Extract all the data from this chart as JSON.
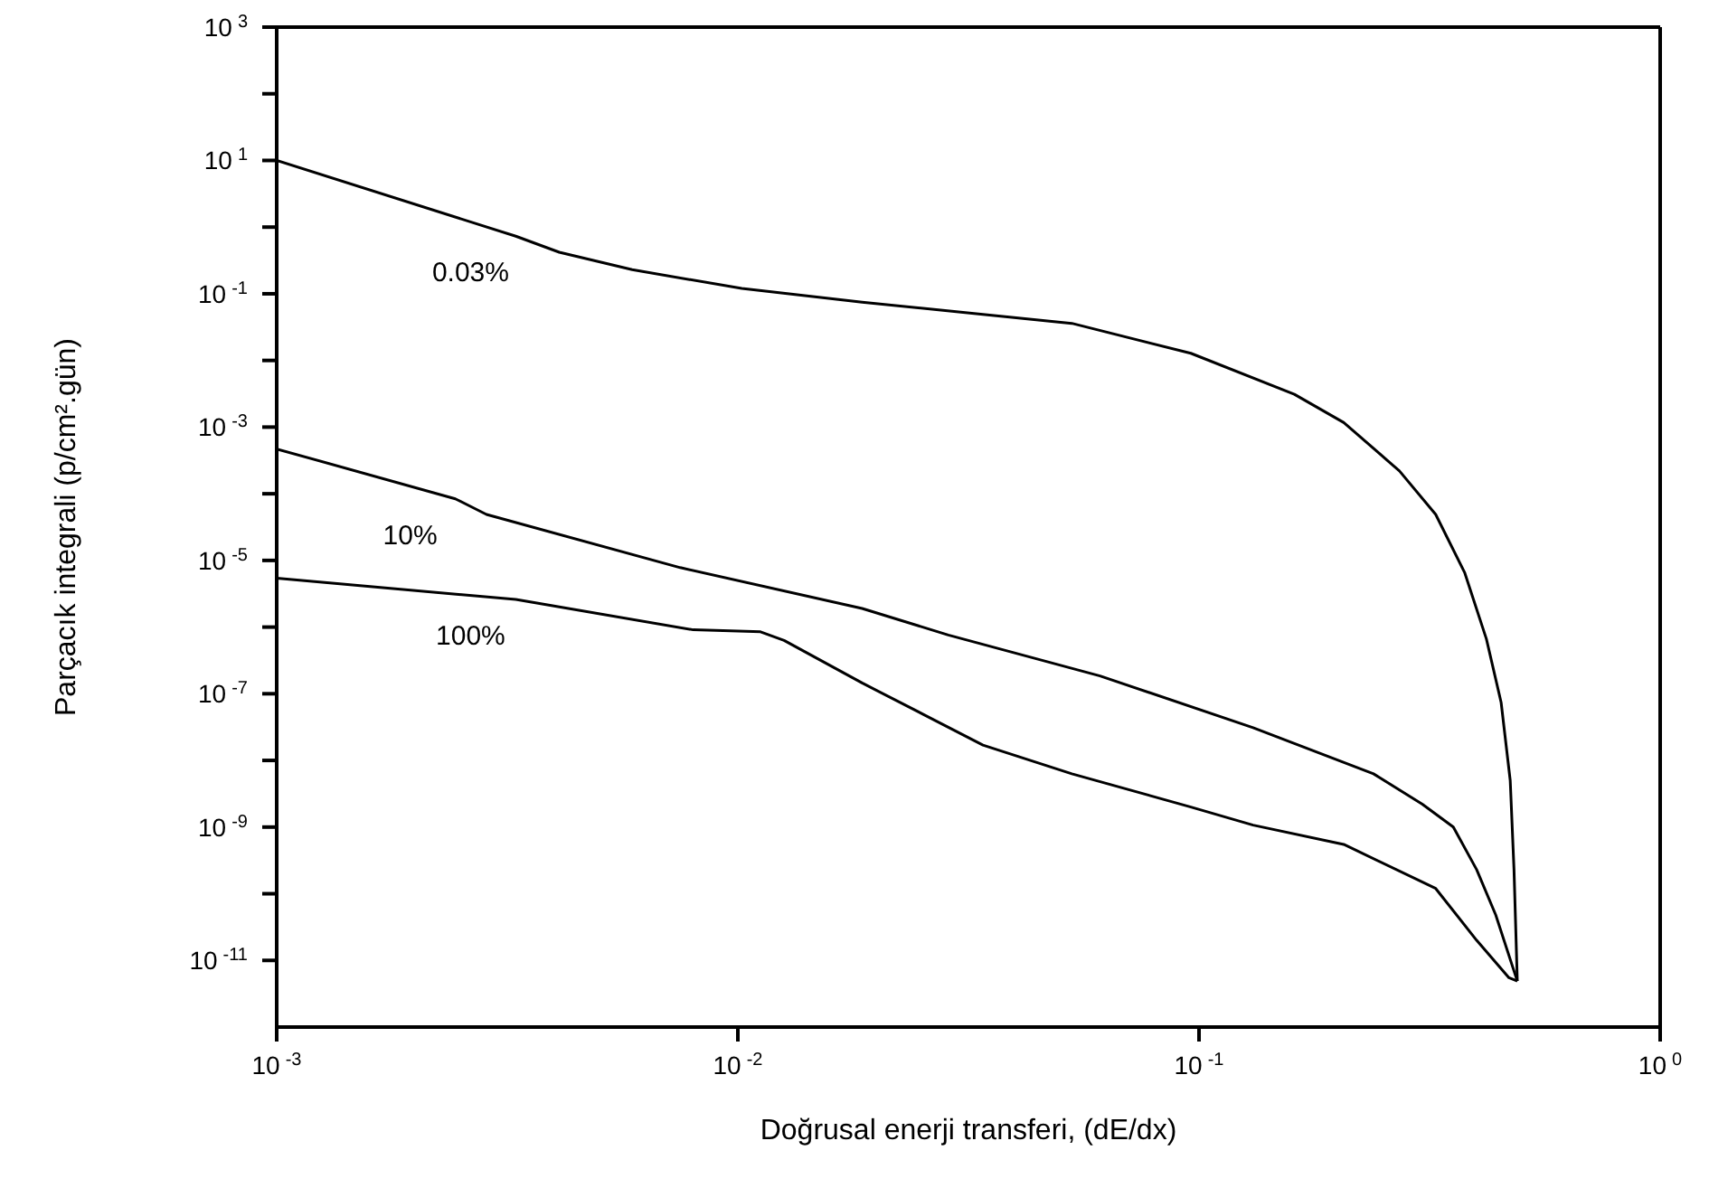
{
  "chart_data": {
    "type": "line",
    "xlabel": "Doğrusal enerji transferi, (dE/dx)",
    "ylabel": "Parçacık integrali  (p/cm².gün)",
    "log": "xy",
    "marker": "none",
    "line_style": "solid",
    "xlim": [
      0.001,
      1
    ],
    "xticks": [
      {
        "value": 0.001,
        "label": "10$^{-3}$"
      },
      {
        "value": 0.01,
        "label": "10$^{-2}$"
      },
      {
        "value": 0.1,
        "label": "10$^{-1}$"
      },
      {
        "value": 1,
        "label": "10$^{0}$"
      }
    ],
    "ylim": [
      1e-12,
      1000
    ],
    "yticks": [
      {
        "value": 1000,
        "label": "10$^{3}$"
      },
      {
        "value": 100,
        "label": null
      },
      {
        "value": 10,
        "label": "10$^{1}$"
      },
      {
        "value": 1,
        "label": null
      },
      {
        "value": 0.1,
        "label": "10$^{-1}$"
      },
      {
        "value": 0.01,
        "label": null
      },
      {
        "value": 0.001,
        "label": "10$^{-3}$"
      },
      {
        "value": 0.0001,
        "label": null
      },
      {
        "value": 1e-05,
        "label": "10$^{-5}$"
      },
      {
        "value": 1e-06,
        "label": null
      },
      {
        "value": 1e-07,
        "label": "10$^{-7}$"
      },
      {
        "value": 1e-08,
        "label": null
      },
      {
        "value": 1e-09,
        "label": "10$^{-9}$"
      },
      {
        "value": 1e-10,
        "label": null
      },
      {
        "value": 1e-11,
        "label": "10$^{-11}$"
      }
    ],
    "series": [
      {
        "name": "0.03%",
        "color": "#000000",
        "x": [
          0.001,
          0.0033,
          0.0041,
          0.0059,
          0.0102,
          0.0186,
          0.034,
          0.053,
          0.096,
          0.161,
          0.206,
          0.272,
          0.326,
          0.377,
          0.42,
          0.452,
          0.473,
          0.482,
          0.49
        ],
        "values": [
          10,
          0.73,
          0.42,
          0.23,
          0.12,
          0.075,
          0.049,
          0.036,
          0.0128,
          0.0031,
          0.00117,
          0.00022,
          4.9e-05,
          6.5e-06,
          6.6e-07,
          7.4e-08,
          5e-09,
          2.3e-10,
          4.9e-12
        ]
      },
      {
        "name": "10%",
        "color": "#000000",
        "x": [
          0.001,
          0.00244,
          0.00285,
          0.0075,
          0.0186,
          0.0286,
          0.061,
          0.131,
          0.239,
          0.305,
          0.356,
          0.4,
          0.44,
          0.49
        ],
        "values": [
          0.00047,
          8.4e-05,
          4.9e-05,
          7.8e-06,
          1.9e-06,
          7.6e-07,
          1.85e-07,
          3.1e-08,
          6.3e-09,
          2.2e-09,
          1e-09,
          2.3e-10,
          4.8e-11,
          4.9e-12
        ]
      },
      {
        "name": "100%",
        "color": "#000000",
        "x": [
          0.001,
          0.0033,
          0.008,
          0.0112,
          0.0126,
          0.0186,
          0.0254,
          0.034,
          0.053,
          0.096,
          0.131,
          0.206,
          0.326,
          0.4,
          0.47,
          0.49
        ],
        "values": [
          5.4e-06,
          2.6e-06,
          9.1e-07,
          8.5e-07,
          6.3e-07,
          1.45e-07,
          4.8e-08,
          1.7e-08,
          6.3e-09,
          2e-09,
          1.07e-09,
          5.5e-10,
          1.2e-10,
          2e-11,
          5.5e-12,
          4.9e-12
        ]
      }
    ]
  }
}
